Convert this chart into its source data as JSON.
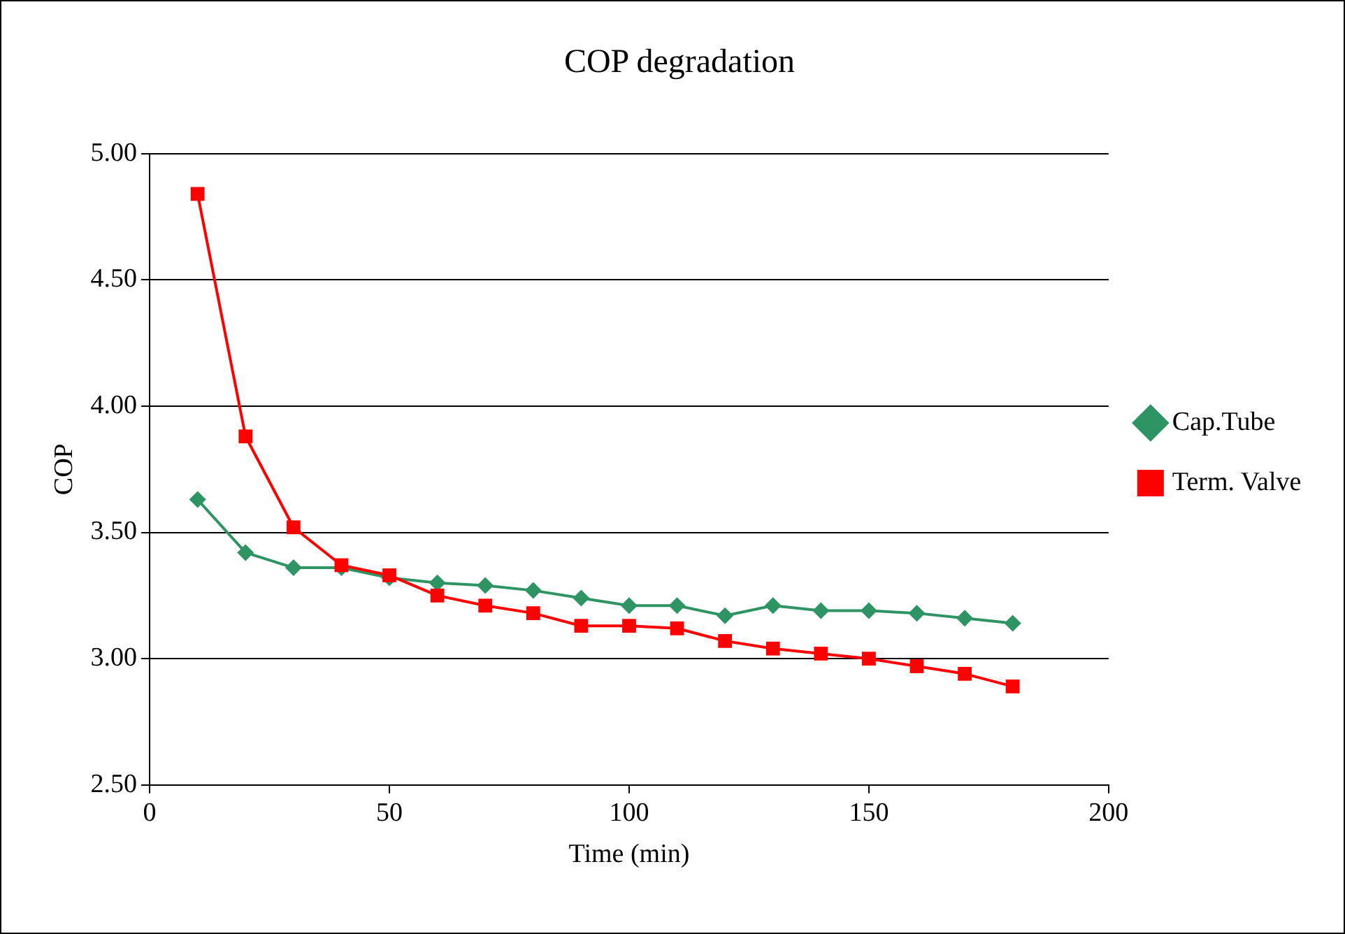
{
  "chart_data": {
    "type": "line",
    "title": "COP degradation",
    "xlabel": "Time (min)",
    "ylabel": "COP",
    "x": [
      10,
      20,
      30,
      40,
      50,
      60,
      70,
      80,
      90,
      100,
      110,
      120,
      130,
      140,
      150,
      160,
      170,
      180
    ],
    "series": [
      {
        "name": "Cap.Tube",
        "color": "#2e9464",
        "marker": "diamond",
        "values": [
          3.63,
          3.42,
          3.36,
          3.36,
          3.32,
          3.3,
          3.29,
          3.27,
          3.24,
          3.21,
          3.21,
          3.17,
          3.21,
          3.19,
          3.19,
          3.18,
          3.16,
          3.14
        ]
      },
      {
        "name": "Term. Valve",
        "color": "#ff0000",
        "marker": "square",
        "values": [
          4.84,
          3.88,
          3.52,
          3.37,
          3.33,
          3.25,
          3.21,
          3.18,
          3.13,
          3.13,
          3.12,
          3.07,
          3.04,
          3.02,
          3.0,
          2.97,
          2.94,
          2.89
        ]
      }
    ],
    "xlim": [
      0,
      200
    ],
    "xticks": [
      0,
      50,
      100,
      150,
      200
    ],
    "ylim": [
      2.5,
      5
    ],
    "yticks": [
      {
        "value": 2.5,
        "label": "2.50"
      },
      {
        "value": 3,
        "label": "3.00"
      },
      {
        "value": 3.5,
        "label": "3.50"
      },
      {
        "value": 4,
        "label": "4.00"
      },
      {
        "value": 4.5,
        "label": "4.50"
      },
      {
        "value": 5,
        "label": "5.00"
      }
    ],
    "grid": "y",
    "legend": "right"
  }
}
